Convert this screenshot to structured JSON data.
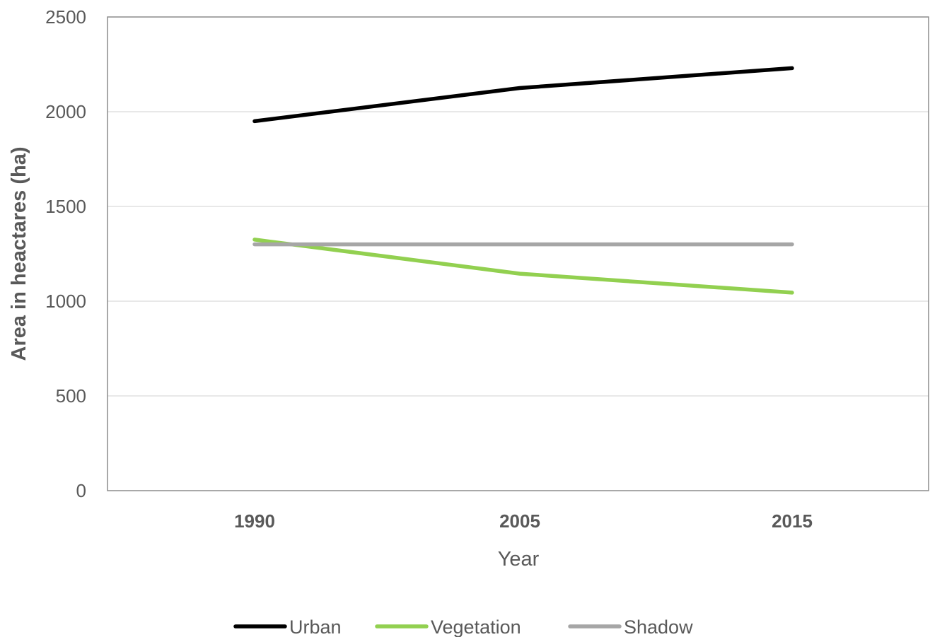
{
  "chart_data": {
    "type": "line",
    "categories": [
      "1990",
      "2005",
      "2015"
    ],
    "series": [
      {
        "name": "Urban",
        "values": [
          1950,
          2125,
          2230
        ],
        "color": "#000000"
      },
      {
        "name": "Vegetation",
        "values": [
          1325,
          1145,
          1045
        ],
        "color": "#92d050"
      },
      {
        "name": "Shadow",
        "values": [
          1300,
          1300,
          1300
        ],
        "color": "#a6a6a6"
      }
    ],
    "xlabel": "Year",
    "ylabel": "Area in heactares (ha)",
    "ylim": [
      0,
      2500
    ],
    "yticks": [
      "0",
      "500",
      "1000",
      "1500",
      "2000",
      "2500"
    ],
    "grid": true,
    "legend_position": "bottom"
  }
}
